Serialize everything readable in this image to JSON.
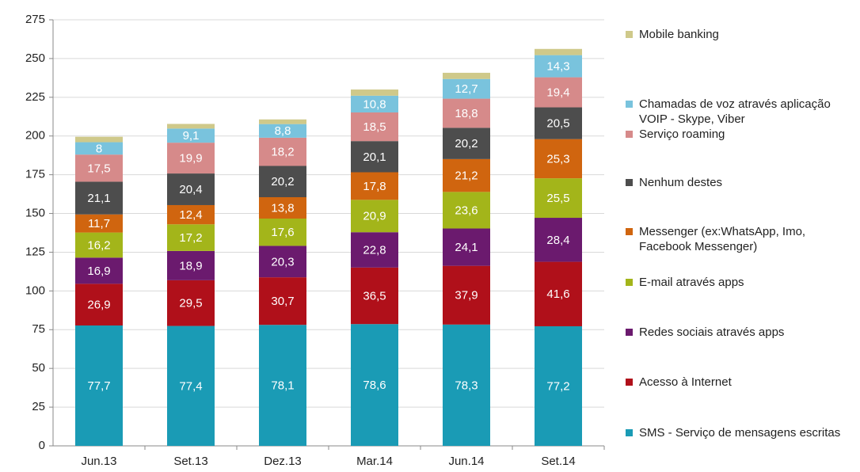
{
  "chart_data": {
    "type": "stacked_bar",
    "categories": [
      "Jun.13",
      "Set.13",
      "Dez.13",
      "Mar.14",
      "Jun.14",
      "Set.14"
    ],
    "ylim": [
      0,
      275
    ],
    "yticks": [
      0,
      25,
      50,
      75,
      100,
      125,
      150,
      175,
      200,
      225,
      250,
      275
    ],
    "grid": true,
    "legend": "right",
    "series": [
      {
        "name": "SMS - Serviço de mensagens escritas",
        "color": "#1a9bb5",
        "values": [
          77.7,
          77.4,
          78.1,
          78.6,
          78.3,
          77.2
        ],
        "value_labels": [
          "77,7",
          "77,4",
          "78,1",
          "78,6",
          "78,3",
          "77,2"
        ]
      },
      {
        "name": "Acesso à Internet",
        "color": "#b0101a",
        "values": [
          26.9,
          29.5,
          30.7,
          36.5,
          37.9,
          41.6
        ],
        "value_labels": [
          "26,9",
          "29,5",
          "30,7",
          "36,5",
          "37,9",
          "41,6"
        ]
      },
      {
        "name": "Redes sociais através apps",
        "color": "#6b1a6e",
        "values": [
          16.9,
          18.9,
          20.3,
          22.8,
          24.1,
          28.4
        ],
        "value_labels": [
          "16,9",
          "18,9",
          "20,3",
          "22,8",
          "24,1",
          "28,4"
        ]
      },
      {
        "name": "E-mail através apps",
        "color": "#a3b51a",
        "values": [
          16.2,
          17.2,
          17.6,
          20.9,
          23.6,
          25.5
        ],
        "value_labels": [
          "16,2",
          "17,2",
          "17,6",
          "20,9",
          "23,6",
          "25,5"
        ]
      },
      {
        "name": "Messenger (ex:WhatsApp, Imo, Facebook Messenger)",
        "color": "#d0650f",
        "values": [
          11.7,
          12.4,
          13.8,
          17.8,
          21.2,
          25.3
        ],
        "value_labels": [
          "11,7",
          "12,4",
          "13,8",
          "17,8",
          "21,2",
          "25,3"
        ]
      },
      {
        "name": "Nenhum destes",
        "color": "#4d4d4d",
        "values": [
          21.1,
          20.4,
          20.2,
          20.1,
          20.2,
          20.5
        ],
        "value_labels": [
          "21,1",
          "20,4",
          "20,2",
          "20,1",
          "20,2",
          "20,5"
        ]
      },
      {
        "name": "Serviço roaming",
        "color": "#d68a8a",
        "values": [
          17.5,
          19.9,
          18.2,
          18.5,
          18.8,
          19.4
        ],
        "value_labels": [
          "17,5",
          "19,9",
          "18,2",
          "18,5",
          "18,8",
          "19,4"
        ]
      },
      {
        "name": "Chamadas de voz através aplicação VOIP - Skype, Viber",
        "color": "#79c3dd",
        "values": [
          8,
          9.1,
          8.8,
          10.8,
          12.7,
          14.3
        ],
        "value_labels": [
          "8",
          "9,1",
          "8,8",
          "10,8",
          "12,7",
          "14,3"
        ]
      },
      {
        "name": "Mobile banking",
        "color": "#cfc98a",
        "values": [
          3.5,
          3,
          3,
          4,
          4,
          4
        ]
      }
    ]
  }
}
